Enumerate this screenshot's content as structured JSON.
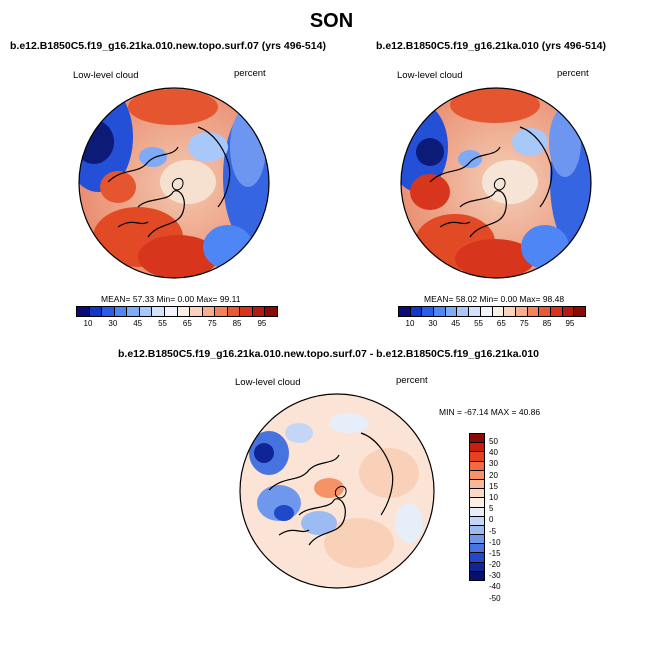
{
  "title": "SON",
  "panels": [
    {
      "case": "b.e12.B1850C5.f19_g16.21ka.010.new.topo.surf.07 (yrs 496-514)",
      "variable": "Low-level cloud",
      "units": "percent",
      "stats": "MEAN=  57.33  Min=   0.00  Max=  99.11"
    },
    {
      "case": "b.e12.B1850C5.f19_g16.21ka.010 (yrs 496-514)",
      "variable": "Low-level cloud",
      "units": "percent",
      "stats": "MEAN=  58.02  Min=   0.00  Max=  98.48"
    }
  ],
  "colorbar_abs": {
    "tick_labels": [
      "10",
      "30",
      "45",
      "55",
      "65",
      "75",
      "85",
      "95"
    ],
    "colors": [
      "#0a0a78",
      "#1238c8",
      "#2a5ee8",
      "#4f86f5",
      "#7eaaf8",
      "#a9c8fa",
      "#d2e2fb",
      "#f0f4fb",
      "#fbeee4",
      "#fbd3bd",
      "#f8ae8c",
      "#f2845c",
      "#e85a35",
      "#d8341c",
      "#b51a0e",
      "#8a0a05"
    ]
  },
  "diff_panel": {
    "case": "b.e12.B1850C5.f19_g16.21ka.010.new.topo.surf.07 - b.e12.B1850C5.f19_g16.21ka.010",
    "variable": "Low-level cloud",
    "units": "percent",
    "stats": "MIN = -67.14 MAX =  40.86"
  },
  "colorbar_diff": {
    "tick_labels": [
      "50",
      "40",
      "30",
      "20",
      "15",
      "10",
      "5",
      "0",
      "-5",
      "-10",
      "-15",
      "-20",
      "-30",
      "-40",
      "-50"
    ],
    "colors": [
      "#8a0a05",
      "#c61f10",
      "#e5401f",
      "#f26a3e",
      "#f59366",
      "#f8b895",
      "#fbd9c3",
      "#fcefe6",
      "#e6eefa",
      "#c3d6f6",
      "#9bbbf2",
      "#6f98ec",
      "#4673e0",
      "#2148c8",
      "#0f2596",
      "#07106a"
    ]
  }
}
